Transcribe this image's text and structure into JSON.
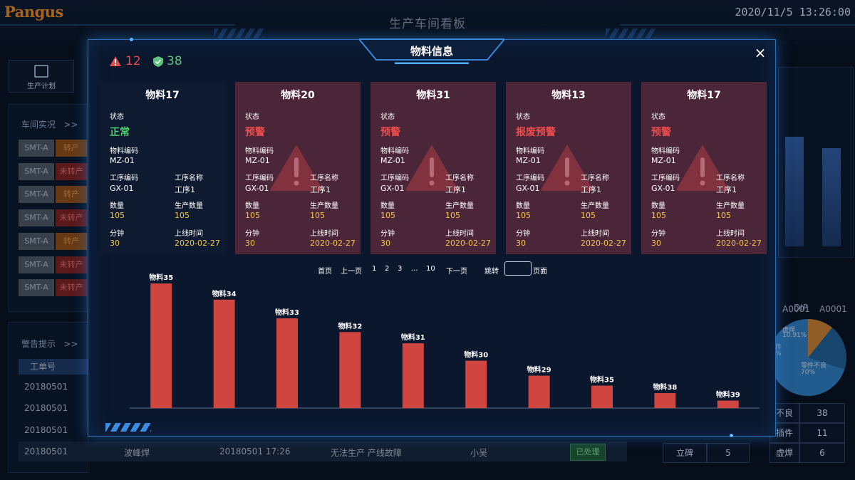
{
  "header": {
    "logo": "Pangus",
    "title": "生产车间看板",
    "datetime": "2020/11/5 13:26:00"
  },
  "left": {
    "plan_label": "生产计划",
    "workshop_title": "车间实况",
    "workshop_more": ">>",
    "lines": [
      {
        "name": "SMT-A",
        "status": "转产",
        "kind": "orange"
      },
      {
        "name": "SMT-A",
        "status": "未转产",
        "kind": "red"
      },
      {
        "name": "SMT-A",
        "status": "转产",
        "kind": "orange"
      },
      {
        "name": "SMT-A",
        "status": "未转产",
        "kind": "red"
      },
      {
        "name": "SMT-A",
        "status": "转产",
        "kind": "orange"
      },
      {
        "name": "SMT-A",
        "status": "未转产",
        "kind": "red"
      },
      {
        "name": "SMT-A",
        "status": "未转产",
        "kind": "red"
      }
    ],
    "alarm_title": "警告提示",
    "alarm_more": ">>",
    "alarm_header": "工单号",
    "alarm_dates": [
      "20180501",
      "20180501",
      "20180501"
    ],
    "bottom_row": {
      "order": "20180501",
      "process": "波峰焊",
      "time": "20180501 17:26",
      "reason": "无法生产 产线故障",
      "person": "小吴",
      "state": "已处理"
    }
  },
  "right": {
    "ticks": [
      "A0001",
      "A0001"
    ],
    "dip_title": "DIP",
    "pie_labels": {
      "a": "虚焊",
      "a_pct": "10.91%",
      "b": "零件不良",
      "b_pct": "70%",
      "c": "件",
      "d": "%"
    },
    "pie_values": [
      {
        "name": "虚焊",
        "value": 10.91,
        "color": "#c07a2e"
      },
      {
        "name": "零件不良",
        "value": 70,
        "color": "#2d79b8"
      }
    ],
    "table": [
      {
        "name": "不良",
        "value": "38"
      },
      {
        "name": "插件",
        "value": "11"
      },
      {
        "name": "立碑",
        "value": "5"
      },
      {
        "name": "虚焊",
        "value": "6"
      }
    ]
  },
  "modal": {
    "title": "物料信息",
    "close": "×",
    "warn_count": "12",
    "ok_count": "38",
    "colors": {
      "warn": "#e34b4b",
      "ok": "#5fc27f",
      "bar": "#d0453f"
    },
    "labels": {
      "status": "状态",
      "material_code": "物料编码",
      "process_code": "工序编码",
      "process_name": "工序名称",
      "quantity": "数量",
      "production_qty": "生产数量",
      "minutes": "分钟",
      "online_time": "上线时间"
    },
    "cards": [
      {
        "name": "物料17",
        "state": "正常",
        "kind": "normal",
        "material_code": "MZ-01",
        "process_code": "GX-01",
        "process_name": "工序1",
        "quantity": "105",
        "production_qty": "105",
        "minutes": "30",
        "online_time": "2020-02-27"
      },
      {
        "name": "物料20",
        "state": "预警",
        "kind": "warn",
        "material_code": "MZ-01",
        "process_code": "GX-01",
        "process_name": "工序1",
        "quantity": "105",
        "production_qty": "105",
        "minutes": "30",
        "online_time": "2020-02-27"
      },
      {
        "name": "物料31",
        "state": "预警",
        "kind": "warn",
        "material_code": "MZ-01",
        "process_code": "GX-01",
        "process_name": "工序1",
        "quantity": "105",
        "production_qty": "105",
        "minutes": "30",
        "online_time": "2020-02-27"
      },
      {
        "name": "物料13",
        "state": "报废预警",
        "kind": "warn",
        "material_code": "MZ-01",
        "process_code": "GX-01",
        "process_name": "工序1",
        "quantity": "105",
        "production_qty": "105",
        "minutes": "30",
        "online_time": "2020-02-27"
      },
      {
        "name": "物料17",
        "state": "预警",
        "kind": "warn",
        "material_code": "MZ-01",
        "process_code": "GX-01",
        "process_name": "工序1",
        "quantity": "105",
        "production_qty": "105",
        "minutes": "30",
        "online_time": "2020-02-27"
      }
    ],
    "pager": {
      "first": "首页",
      "prev": "上一页",
      "pages": [
        "1",
        "2",
        "3",
        "...",
        "10"
      ],
      "next": "下一页",
      "jump": "跳转",
      "page_suffix": "页面",
      "jump_value": ""
    }
  },
  "chart_data": {
    "type": "bar",
    "categories": [
      "物料35",
      "物料34",
      "物料33",
      "物料32",
      "物料31",
      "物料30",
      "物料29",
      "物料35",
      "物料38",
      "物料39"
    ],
    "values": [
      100,
      87,
      72,
      61,
      52,
      38,
      26,
      18,
      12,
      6
    ],
    "ylim": [
      0,
      100
    ],
    "grid": false
  }
}
